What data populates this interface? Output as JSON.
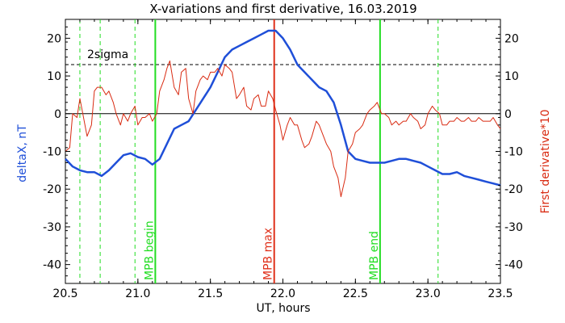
{
  "chart_data": {
    "type": "line",
    "title": "X-variations and first derivative, 16.03.2019",
    "xlabel": "UT, hours",
    "ylabel_left": "deltaX, nT",
    "ylabel_right": "First derivative*10",
    "xlim": [
      20.5,
      23.5
    ],
    "ylim": [
      -45,
      25
    ],
    "x_ticks": [
      20.5,
      21.0,
      21.5,
      22.0,
      22.5,
      23.0,
      23.5
    ],
    "x_tick_labels": [
      "20.5",
      "21.0",
      "21.5",
      "22.0",
      "22.5",
      "23.0",
      "23.5"
    ],
    "y_ticks": [
      20,
      10,
      0,
      -10,
      -20,
      -30,
      -40
    ],
    "y_tick_labels": [
      "20",
      "10",
      "0",
      "-10",
      "-20",
      "-30",
      "-40"
    ],
    "colors": {
      "deltaX": "#1f4fd8",
      "derivative": "#d92b12",
      "mpb": "#22dd22",
      "mpb_max": "#e0301a",
      "reference": "#000000"
    },
    "series": [
      {
        "key": "deltaX",
        "color": "#1f4fd8",
        "x": [
          20.5,
          20.55,
          20.6,
          20.65,
          20.7,
          20.75,
          20.8,
          20.85,
          20.9,
          20.95,
          21.0,
          21.05,
          21.1,
          21.15,
          21.2,
          21.25,
          21.3,
          21.35,
          21.4,
          21.45,
          21.5,
          21.55,
          21.6,
          21.65,
          21.7,
          21.75,
          21.8,
          21.85,
          21.9,
          21.95,
          22.0,
          22.05,
          22.1,
          22.15,
          22.2,
          22.25,
          22.3,
          22.35,
          22.4,
          22.45,
          22.5,
          22.55,
          22.6,
          22.65,
          22.7,
          22.75,
          22.8,
          22.85,
          22.9,
          22.95,
          23.0,
          23.05,
          23.1,
          23.15,
          23.2,
          23.25,
          23.3,
          23.35,
          23.4,
          23.45,
          23.5
        ],
        "y": [
          -12,
          -14,
          -15,
          -15.5,
          -15.5,
          -16.5,
          -15,
          -13,
          -11,
          -10.5,
          -11.5,
          -12,
          -13.5,
          -12,
          -8,
          -4,
          -3,
          -2,
          1,
          4,
          7,
          11,
          15,
          17,
          18,
          19,
          20,
          21,
          22,
          22,
          20,
          17,
          13,
          11,
          9,
          7,
          6,
          3,
          -3,
          -10,
          -12,
          -12.5,
          -13,
          -13,
          -13,
          -12.5,
          -12,
          -12,
          -12.5,
          -13,
          -14,
          -15,
          -16,
          -16,
          -15.5,
          -16.5,
          -17,
          -17.5,
          -18,
          -18.5,
          -19
        ]
      },
      {
        "key": "derivative",
        "color": "#d92b12",
        "x": [
          20.5,
          20.53,
          20.55,
          20.58,
          20.6,
          20.62,
          20.65,
          20.68,
          20.7,
          20.72,
          20.75,
          20.78,
          20.8,
          20.83,
          20.85,
          20.88,
          20.9,
          20.93,
          20.95,
          20.98,
          21.0,
          21.03,
          21.05,
          21.08,
          21.1,
          21.13,
          21.15,
          21.18,
          21.2,
          21.22,
          21.25,
          21.28,
          21.3,
          21.33,
          21.35,
          21.38,
          21.4,
          21.43,
          21.45,
          21.48,
          21.5,
          21.53,
          21.55,
          21.58,
          21.6,
          21.63,
          21.65,
          21.68,
          21.7,
          21.73,
          21.75,
          21.78,
          21.8,
          21.83,
          21.85,
          21.88,
          21.9,
          21.93,
          21.95,
          21.98,
          22.0,
          22.03,
          22.05,
          22.08,
          22.1,
          22.13,
          22.15,
          22.18,
          22.2,
          22.23,
          22.25,
          22.28,
          22.3,
          22.33,
          22.35,
          22.38,
          22.4,
          22.43,
          22.45,
          22.48,
          22.5,
          22.53,
          22.55,
          22.58,
          22.6,
          22.63,
          22.65,
          22.68,
          22.7,
          22.73,
          22.75,
          22.78,
          22.8,
          22.83,
          22.85,
          22.88,
          22.9,
          22.93,
          22.95,
          22.98,
          23.0,
          23.03,
          23.05,
          23.08,
          23.1,
          23.13,
          23.15,
          23.18,
          23.2,
          23.23,
          23.25,
          23.28,
          23.3,
          23.33,
          23.35,
          23.38,
          23.4,
          23.43,
          23.45,
          23.48,
          23.5
        ],
        "y": [
          -10,
          -9,
          0,
          -1,
          4,
          0,
          -6,
          -3,
          6,
          7,
          7,
          5,
          6,
          3,
          0,
          -3,
          0,
          -2,
          0,
          2,
          -3,
          -1,
          -1,
          0,
          -2,
          0,
          6,
          9,
          12,
          14,
          7,
          5,
          11,
          12,
          4,
          0,
          6,
          9,
          10,
          9,
          11,
          11,
          12,
          10,
          13,
          12,
          11,
          4,
          5,
          7,
          2,
          1,
          4,
          5,
          2,
          2,
          6,
          4,
          1,
          -3,
          -7,
          -3,
          -1,
          -3,
          -3,
          -7,
          -9,
          -8,
          -6,
          -2,
          -3,
          -6,
          -8,
          -10,
          -14,
          -17,
          -22,
          -17,
          -10,
          -8,
          -5,
          -4,
          -3,
          0,
          1,
          2,
          3,
          0,
          0,
          -1,
          -3,
          -2,
          -3,
          -2,
          -2,
          0,
          -1,
          -2,
          -4,
          -3,
          0,
          2,
          1,
          0,
          -3,
          -3,
          -2,
          -2,
          -1,
          -2,
          -2,
          -1,
          -2,
          -2,
          -1,
          -2,
          -2,
          -2,
          -1,
          -3,
          -4
        ]
      }
    ],
    "horizontal_lines": [
      {
        "key": "zero",
        "y": 0,
        "style": "solid",
        "color": "#000000"
      },
      {
        "key": "sigma",
        "y": 13,
        "style": "dashed",
        "color": "#000000",
        "label": "2sigma"
      }
    ],
    "vertical_lines": [
      {
        "key": "dash1",
        "x": 20.6,
        "style": "dashed",
        "color": "#22dd22"
      },
      {
        "key": "dash2",
        "x": 20.74,
        "style": "dashed",
        "color": "#22dd22"
      },
      {
        "key": "dash3",
        "x": 20.98,
        "style": "dashed",
        "color": "#22dd22"
      },
      {
        "key": "mpb_begin",
        "x": 21.12,
        "style": "solid",
        "color": "#22dd22",
        "label": "MPB begin",
        "label_color": "#22dd22"
      },
      {
        "key": "mpb_max",
        "x": 21.94,
        "style": "solid",
        "color": "#e0301a",
        "label": "MPB max",
        "label_color": "#e0301a"
      },
      {
        "key": "mpb_end",
        "x": 22.67,
        "style": "solid",
        "color": "#22dd22",
        "label": "MPB end",
        "label_color": "#22dd22"
      },
      {
        "key": "dash4",
        "x": 23.07,
        "style": "dashed",
        "color": "#22dd22"
      }
    ],
    "grid": false,
    "legend": "none"
  }
}
